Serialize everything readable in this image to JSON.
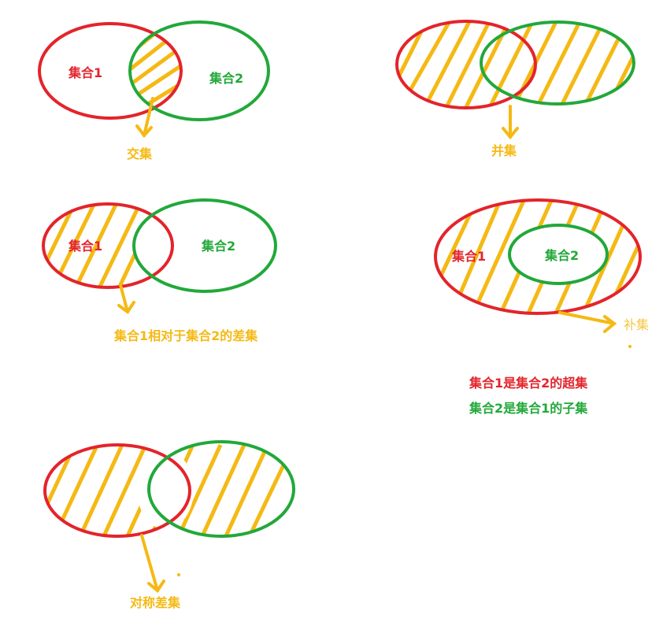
{
  "colors": {
    "red": "#e3242b",
    "green": "#22a83a",
    "gold": "#f5b914"
  },
  "set1_label": "集合1",
  "set2_label": "集合2",
  "intersection_label": "交集",
  "union_label": "并集",
  "difference_label": "集合1相对于集合2的差集",
  "complement_label": "补集",
  "superset_label": "集合1是集合2的超集",
  "subset_label": "集合2是集合1的子集",
  "symmetric_difference_label": "对称差集"
}
